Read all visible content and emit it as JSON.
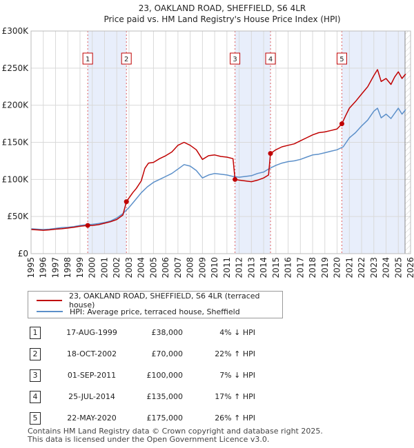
{
  "chart_data": {
    "type": "line",
    "title": "23, OAKLAND ROAD, SHEFFIELD, S6 4LR",
    "subtitle": "Price paid vs. HM Land Registry's House Price Index (HPI)",
    "xlim": [
      1995,
      2026
    ],
    "ylim": [
      0,
      300000
    ],
    "x_ticks": [
      1995,
      1996,
      1997,
      1998,
      1999,
      2000,
      2001,
      2002,
      2003,
      2004,
      2005,
      2006,
      2007,
      2008,
      2009,
      2010,
      2011,
      2012,
      2013,
      2014,
      2015,
      2016,
      2017,
      2018,
      2019,
      2020,
      2021,
      2022,
      2023,
      2024,
      2025,
      2026
    ],
    "y_ticks": [
      {
        "value": 0,
        "label": "£0"
      },
      {
        "value": 50000,
        "label": "£50K"
      },
      {
        "value": 100000,
        "label": "£100K"
      },
      {
        "value": 150000,
        "label": "£150K"
      },
      {
        "value": 200000,
        "label": "£200K"
      },
      {
        "value": 250000,
        "label": "£250K"
      },
      {
        "value": 300000,
        "label": "£300K"
      }
    ],
    "series": [
      {
        "name": "23, OAKLAND ROAD, SHEFFIELD, S6 4LR (terraced house)",
        "color": "#c00000",
        "points": [
          [
            1995,
            32500
          ],
          [
            1995.5,
            32000
          ],
          [
            1996,
            31500
          ],
          [
            1996.5,
            32000
          ],
          [
            1997,
            33000
          ],
          [
            1997.5,
            33500
          ],
          [
            1998,
            34500
          ],
          [
            1998.5,
            35500
          ],
          [
            1999,
            37000
          ],
          [
            1999.63,
            38000
          ],
          [
            2000,
            38000
          ],
          [
            2000.5,
            39000
          ],
          [
            2001,
            41000
          ],
          [
            2001.5,
            43000
          ],
          [
            2002,
            46000
          ],
          [
            2002.5,
            52000
          ],
          [
            2002.79,
            70000
          ],
          [
            2003,
            75000
          ],
          [
            2003.3,
            82000
          ],
          [
            2003.6,
            88000
          ],
          [
            2004,
            98000
          ],
          [
            2004.3,
            115000
          ],
          [
            2004.6,
            122000
          ],
          [
            2005,
            123000
          ],
          [
            2005.5,
            128000
          ],
          [
            2006,
            132000
          ],
          [
            2006.5,
            137000
          ],
          [
            2007,
            146000
          ],
          [
            2007.5,
            150000
          ],
          [
            2008,
            146000
          ],
          [
            2008.5,
            140000
          ],
          [
            2009,
            127000
          ],
          [
            2009.5,
            132000
          ],
          [
            2010,
            133000
          ],
          [
            2010.5,
            131000
          ],
          [
            2011,
            130000
          ],
          [
            2011.5,
            128000
          ],
          [
            2011.66,
            100000
          ],
          [
            2012,
            99000
          ],
          [
            2012.5,
            98000
          ],
          [
            2013,
            97000
          ],
          [
            2013.5,
            99000
          ],
          [
            2014,
            102000
          ],
          [
            2014.4,
            106000
          ],
          [
            2014.56,
            135000
          ],
          [
            2015,
            140000
          ],
          [
            2015.5,
            144000
          ],
          [
            2016,
            146000
          ],
          [
            2016.5,
            148000
          ],
          [
            2017,
            152000
          ],
          [
            2017.5,
            156000
          ],
          [
            2018,
            160000
          ],
          [
            2018.5,
            163000
          ],
          [
            2019,
            164000
          ],
          [
            2019.5,
            166000
          ],
          [
            2020,
            168000
          ],
          [
            2020.39,
            175000
          ],
          [
            2020.7,
            186000
          ],
          [
            2021,
            196000
          ],
          [
            2021.5,
            205000
          ],
          [
            2022,
            215000
          ],
          [
            2022.5,
            225000
          ],
          [
            2023,
            240000
          ],
          [
            2023.3,
            248000
          ],
          [
            2023.6,
            232000
          ],
          [
            2024,
            236000
          ],
          [
            2024.4,
            228000
          ],
          [
            2024.7,
            238000
          ],
          [
            2025,
            245000
          ],
          [
            2025.3,
            236000
          ],
          [
            2025.6,
            242000
          ]
        ]
      },
      {
        "name": "HPI: Average price, terraced house, Sheffield",
        "color": "#5b8fc9",
        "points": [
          [
            1995,
            33500
          ],
          [
            1995.5,
            33000
          ],
          [
            1996,
            32500
          ],
          [
            1996.5,
            33000
          ],
          [
            1997,
            34000
          ],
          [
            1997.5,
            35000
          ],
          [
            1998,
            35500
          ],
          [
            1998.5,
            36500
          ],
          [
            1999,
            38000
          ],
          [
            1999.5,
            39000
          ],
          [
            2000,
            39500
          ],
          [
            2000.5,
            40500
          ],
          [
            2001,
            42000
          ],
          [
            2001.5,
            44000
          ],
          [
            2002,
            48000
          ],
          [
            2002.5,
            54000
          ],
          [
            2003,
            62000
          ],
          [
            2003.5,
            72000
          ],
          [
            2004,
            82000
          ],
          [
            2004.5,
            90000
          ],
          [
            2005,
            96000
          ],
          [
            2005.5,
            100000
          ],
          [
            2006,
            104000
          ],
          [
            2006.5,
            108000
          ],
          [
            2007,
            114000
          ],
          [
            2007.5,
            120000
          ],
          [
            2008,
            118000
          ],
          [
            2008.5,
            112000
          ],
          [
            2009,
            102000
          ],
          [
            2009.5,
            106000
          ],
          [
            2010,
            108000
          ],
          [
            2010.5,
            107000
          ],
          [
            2011,
            106000
          ],
          [
            2011.5,
            104000
          ],
          [
            2012,
            103000
          ],
          [
            2012.5,
            104000
          ],
          [
            2013,
            105000
          ],
          [
            2013.5,
            108000
          ],
          [
            2014,
            110000
          ],
          [
            2014.5,
            115000
          ],
          [
            2015,
            119000
          ],
          [
            2015.5,
            122000
          ],
          [
            2016,
            124000
          ],
          [
            2016.5,
            125000
          ],
          [
            2017,
            127000
          ],
          [
            2017.5,
            130000
          ],
          [
            2018,
            133000
          ],
          [
            2018.5,
            134000
          ],
          [
            2019,
            136000
          ],
          [
            2019.5,
            138000
          ],
          [
            2020,
            140000
          ],
          [
            2020.5,
            144000
          ],
          [
            2021,
            156000
          ],
          [
            2021.5,
            163000
          ],
          [
            2022,
            172000
          ],
          [
            2022.5,
            180000
          ],
          [
            2023,
            192000
          ],
          [
            2023.3,
            196000
          ],
          [
            2023.6,
            183000
          ],
          [
            2024,
            188000
          ],
          [
            2024.4,
            182000
          ],
          [
            2024.7,
            189000
          ],
          [
            2025,
            196000
          ],
          [
            2025.3,
            188000
          ],
          [
            2025.6,
            194000
          ]
        ]
      }
    ],
    "sales": [
      {
        "num": "1",
        "x": 1999.63,
        "price": 38000
      },
      {
        "num": "2",
        "x": 2002.79,
        "price": 70000
      },
      {
        "num": "3",
        "x": 2011.66,
        "price": 100000
      },
      {
        "num": "4",
        "x": 2014.56,
        "price": 135000
      },
      {
        "num": "5",
        "x": 2020.39,
        "price": 175000
      }
    ],
    "shaded_ranges": [
      [
        1999.63,
        2002.79
      ],
      [
        2011.66,
        2014.56
      ],
      [
        2020.39,
        2025.55
      ]
    ],
    "forecast_start": 2025.55,
    "colors": {
      "property": "#c00000",
      "hpi": "#5b8fc9",
      "shade": "#e8eefb",
      "grid": "#d9d9d9"
    }
  },
  "legend": {
    "property_label": "23, OAKLAND ROAD, SHEFFIELD, S6 4LR (terraced house)",
    "hpi_label": "HPI: Average price, terraced house, Sheffield"
  },
  "transactions": [
    {
      "num": "1",
      "date": "17-AUG-1999",
      "price": "£38,000",
      "hpi": "4% ↓ HPI"
    },
    {
      "num": "2",
      "date": "18-OCT-2002",
      "price": "£70,000",
      "hpi": "22% ↑ HPI"
    },
    {
      "num": "3",
      "date": "01-SEP-2011",
      "price": "£100,000",
      "hpi": "7% ↓ HPI"
    },
    {
      "num": "4",
      "date": "25-JUL-2014",
      "price": "£135,000",
      "hpi": "17% ↑ HPI"
    },
    {
      "num": "5",
      "date": "22-MAY-2020",
      "price": "£175,000",
      "hpi": "26% ↑ HPI"
    }
  ],
  "footer": {
    "line1": "Contains HM Land Registry data © Crown copyright and database right 2025.",
    "line2": "This data is licensed under the Open Government Licence v3.0."
  }
}
